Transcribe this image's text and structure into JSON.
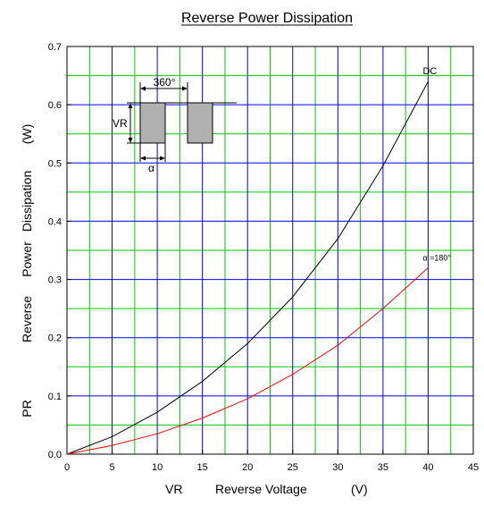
{
  "chart_data": {
    "type": "line",
    "title": "Reverse Power Dissipation",
    "xlabel": {
      "symbol": "VR",
      "text": "Reverse Voltage",
      "unit": "(V)"
    },
    "ylabel": {
      "symbol": "PR",
      "words": [
        "Reverse",
        "Power",
        "Dissipation"
      ],
      "unit": "(W)"
    },
    "xlim": [
      0,
      45
    ],
    "ylim": [
      0,
      0.7
    ],
    "x_ticks": [
      0,
      5,
      10,
      15,
      20,
      25,
      30,
      35,
      40,
      45
    ],
    "x_tick_labels": [
      "0",
      "5",
      "10",
      "15",
      "20",
      "25",
      "30",
      "35",
      "40",
      "45"
    ],
    "y_ticks": [
      0,
      0.1,
      0.2,
      0.3,
      0.4,
      0.5,
      0.6,
      0.7
    ],
    "y_tick_labels": [
      "0.0",
      "0.1",
      "0.2",
      "0.3",
      "0.4",
      "0.5",
      "0.6",
      "0.7"
    ],
    "grid": {
      "major_color": "#0000ff",
      "minor_color": "#00cc00",
      "major_step_x": 5,
      "minor_step_x": 2.5,
      "major_step_y": 0.1,
      "minor_step_y": 0.05
    },
    "series": [
      {
        "name": "DC",
        "color": "#000000",
        "x": [
          0,
          5,
          10,
          15,
          20,
          25,
          30,
          35,
          40
        ],
        "y": [
          0,
          0.03,
          0.072,
          0.125,
          0.19,
          0.27,
          0.37,
          0.495,
          0.64
        ]
      },
      {
        "name": "α =180°",
        "color": "#ff0000",
        "x": [
          0,
          5,
          10,
          15,
          20,
          25,
          30,
          35,
          40
        ],
        "y": [
          0,
          0.015,
          0.035,
          0.062,
          0.095,
          0.137,
          0.187,
          0.25,
          0.32
        ]
      }
    ],
    "inset": {
      "period_label": "360°",
      "amplitude_label": "VR",
      "pulse_label": "α",
      "fill_color": "#b0b0b0"
    }
  }
}
